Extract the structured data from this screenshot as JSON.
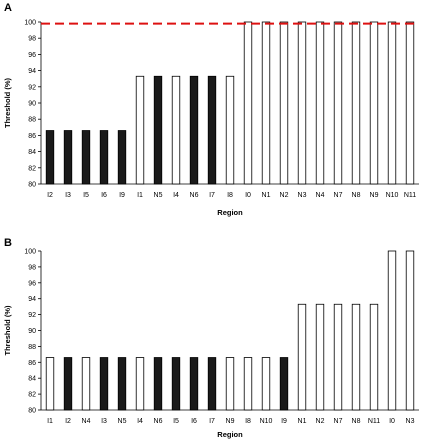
{
  "colors": {
    "filled": "#1a1a1a",
    "open": "#ffffff",
    "stroke": "#000000",
    "reference": "#dd1111"
  },
  "chart_data": [
    {
      "panel": "A",
      "type": "bar",
      "xlabel": "Region",
      "ylabel": "Threshold (%)",
      "ylim": [
        80,
        100
      ],
      "yticks": [
        80,
        82,
        84,
        86,
        88,
        90,
        92,
        94,
        96,
        98,
        100
      ],
      "reference_line": 99.8,
      "grid": false,
      "categories": [
        "I2",
        "I3",
        "I5",
        "I6",
        "I9",
        "I1",
        "N5",
        "I4",
        "N6",
        "I7",
        "I8",
        "I0",
        "N1",
        "N2",
        "N3",
        "N4",
        "N7",
        "N8",
        "N9",
        "N10",
        "N11"
      ],
      "values": [
        86.6,
        86.6,
        86.6,
        86.6,
        86.6,
        93.3,
        93.3,
        93.3,
        93.3,
        93.3,
        93.3,
        100,
        100,
        100,
        100,
        100,
        100,
        100,
        100,
        100,
        100
      ],
      "filled": [
        true,
        true,
        true,
        true,
        true,
        false,
        true,
        false,
        true,
        true,
        false,
        false,
        false,
        false,
        false,
        false,
        false,
        false,
        false,
        false,
        false
      ]
    },
    {
      "panel": "B",
      "type": "bar",
      "xlabel": "Region",
      "ylabel": "Threshold (%)",
      "ylim": [
        80,
        100
      ],
      "yticks": [
        80,
        82,
        84,
        86,
        88,
        90,
        92,
        94,
        96,
        98,
        100
      ],
      "grid": false,
      "categories": [
        "I1",
        "I2",
        "N4",
        "I3",
        "N5",
        "I4",
        "N6",
        "I5",
        "I6",
        "I7",
        "N9",
        "I8",
        "N10",
        "I9",
        "N1",
        "N2",
        "N7",
        "N8",
        "N11",
        "I0",
        "N3"
      ],
      "values": [
        86.6,
        86.6,
        86.6,
        86.6,
        86.6,
        86.6,
        86.6,
        86.6,
        86.6,
        86.6,
        86.6,
        86.6,
        86.6,
        86.6,
        93.3,
        93.3,
        93.3,
        93.3,
        93.3,
        100,
        100
      ],
      "filled": [
        false,
        true,
        false,
        true,
        true,
        false,
        true,
        true,
        true,
        true,
        false,
        false,
        false,
        true,
        false,
        false,
        false,
        false,
        false,
        false,
        false
      ]
    }
  ]
}
